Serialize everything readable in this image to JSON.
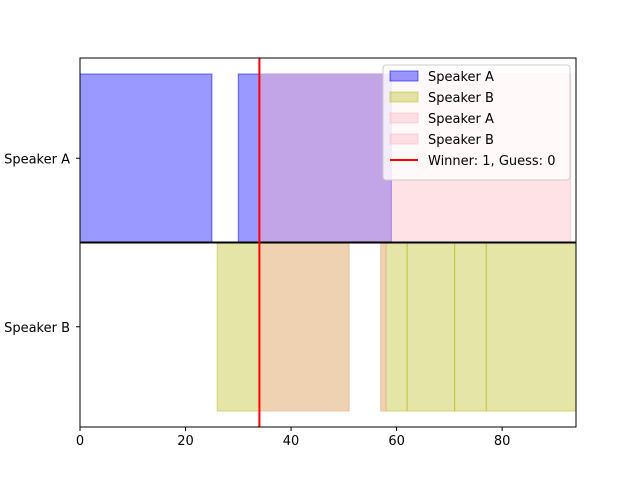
{
  "chart_data": {
    "type": "timeline",
    "xlim": [
      0,
      94
    ],
    "xticks": [
      0,
      20,
      40,
      60,
      80
    ],
    "tracks": [
      "Speaker A",
      "Speaker B"
    ],
    "series": [
      {
        "name": "Speaker A",
        "track": "Speaker A",
        "color": "#0000ff",
        "opacity": 0.4,
        "segments": [
          [
            0,
            25
          ],
          [
            30,
            59
          ]
        ]
      },
      {
        "name": "Speaker B",
        "track": "Speaker B",
        "color": "#bcbd22",
        "opacity": 0.4,
        "segments": [
          [
            26,
            51
          ],
          [
            57,
            58
          ],
          [
            58,
            62
          ],
          [
            62,
            71
          ],
          [
            71,
            77
          ],
          [
            77,
            94
          ]
        ]
      },
      {
        "name": "Speaker A",
        "track": "Speaker A",
        "color": "#ffb6c1",
        "opacity": 0.4,
        "segments": [
          [
            34,
            93
          ]
        ]
      },
      {
        "name": "Speaker B",
        "track": "Speaker B",
        "color": "#ffb6c1",
        "opacity": 0.4,
        "segments": [
          [
            34,
            51
          ],
          [
            57,
            58
          ]
        ]
      }
    ],
    "marker": {
      "label": "Winner: 1, Guess: 0",
      "x": 34,
      "color": "#ff0000"
    },
    "divider_color": "#000000",
    "legend_position": "top-right",
    "grid": false
  }
}
